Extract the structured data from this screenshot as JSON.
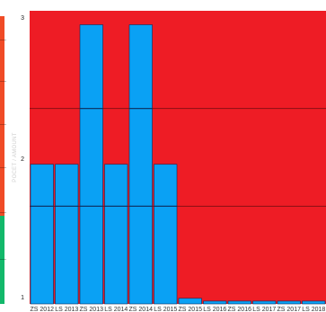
{
  "chart_data": {
    "type": "bar",
    "ylabel": "POCET / AMOUNT",
    "yticks": [
      1,
      2,
      3
    ],
    "ylim": [
      1,
      3.1
    ],
    "background_color": "#ee1c25",
    "bar_color": "#0aa1f4",
    "bar_edge_color": "#0d2b5a",
    "grid": true,
    "categories": [
      "ZS 2012",
      "LS 2013",
      "ZS 2013",
      "LS 2014",
      "ZS 2014",
      "LS 2015",
      "ZS 2015",
      "LS 2016",
      "ZS 2016",
      "LS 2017",
      "ZS 2017",
      "LS 2018"
    ],
    "values": [
      2,
      2,
      3,
      2,
      3,
      2,
      1.04,
      1.02,
      1.02,
      1.02,
      1.02,
      1.02
    ]
  },
  "left_legend": {
    "colors": [
      "#f04b26",
      "#12b86a"
    ]
  }
}
